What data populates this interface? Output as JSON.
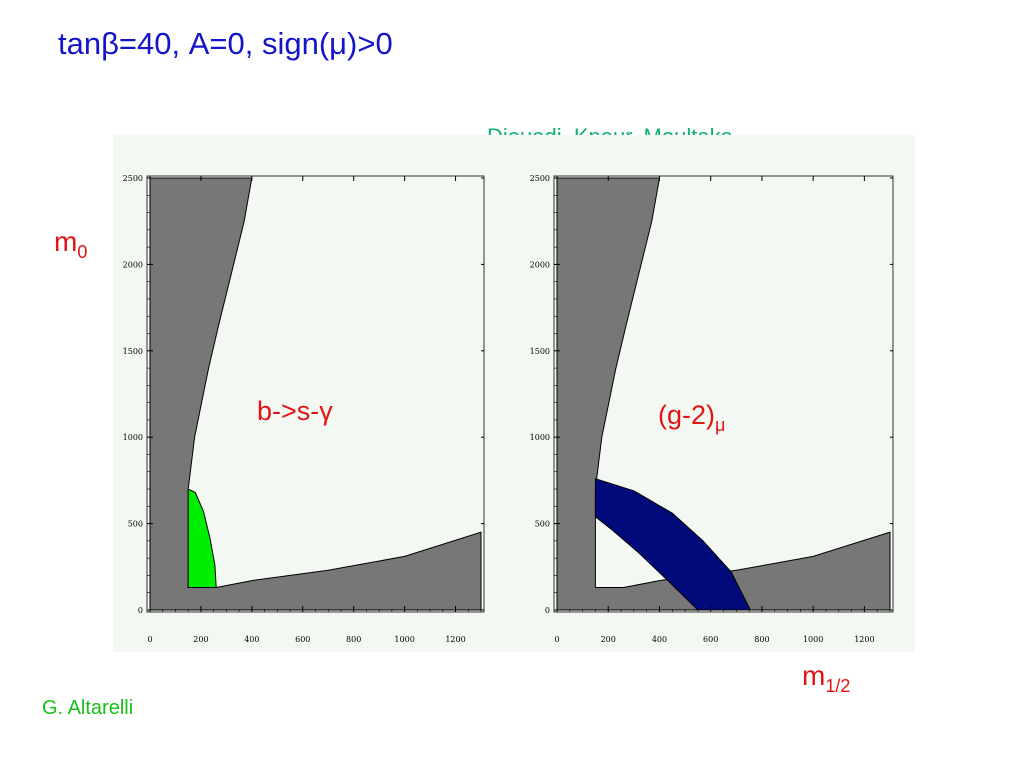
{
  "slide": {
    "title": "tanβ=40, A=0, sign(μ)>0",
    "credit_top": "Djouadi, Kneur, Moultaka",
    "credit_bottom": "G. Altarelli"
  },
  "colors": {
    "title": "#1414c8",
    "label_red": "#e01414",
    "excluded_gray": "#777777",
    "bsgamma_green": "#00ee00",
    "g2_blue": "#000a7a",
    "panel_bg": "#f3f8f2",
    "credit_green": "#10b070"
  },
  "chart_data": [
    {
      "type": "area",
      "xlabel_main": "m",
      "xlabel_sub": "1/2",
      "ylabel_main": "m",
      "ylabel_sub": "0",
      "annotation": "b->s-γ",
      "x_ticks": [
        "0",
        "200",
        "400",
        "600",
        "800",
        "1000",
        "1200"
      ],
      "y_ticks": [
        "0",
        "500",
        "1000",
        "1500",
        "2000",
        "2500"
      ],
      "xlim": [
        0,
        1300
      ],
      "ylim": [
        0,
        2500
      ],
      "regions": [
        {
          "name": "excluded-gray",
          "color": "#777777",
          "polygon": [
            [
              0,
              0
            ],
            [
              0,
              2500
            ],
            [
              400,
              2500
            ],
            [
              370,
              2250
            ],
            [
              320,
              1950
            ],
            [
              270,
              1650
            ],
            [
              230,
              1400
            ],
            [
              175,
              1000
            ],
            [
              150,
              700
            ],
            [
              150,
              130
            ],
            [
              260,
              130
            ],
            [
              400,
              170
            ],
            [
              700,
              230
            ],
            [
              1000,
              310
            ],
            [
              1300,
              450
            ],
            [
              1300,
              0
            ]
          ]
        },
        {
          "name": "bsgamma-green",
          "color": "#00ee00",
          "polygon": [
            [
              150,
              130
            ],
            [
              150,
              700
            ],
            [
              178,
              680
            ],
            [
              210,
              570
            ],
            [
              235,
              420
            ],
            [
              255,
              260
            ],
            [
              260,
              130
            ]
          ]
        }
      ]
    },
    {
      "type": "area",
      "annotation_main": "(g-2)",
      "annotation_sub": "μ",
      "x_ticks": [
        "0",
        "200",
        "400",
        "600",
        "800",
        "1000",
        "1200"
      ],
      "y_ticks": [
        "0",
        "500",
        "1000",
        "1500",
        "2000",
        "2500"
      ],
      "xlim": [
        0,
        1300
      ],
      "ylim": [
        0,
        2500
      ],
      "regions": [
        {
          "name": "excluded-gray",
          "color": "#777777",
          "polygon": [
            [
              0,
              0
            ],
            [
              0,
              2500
            ],
            [
              400,
              2500
            ],
            [
              370,
              2250
            ],
            [
              320,
              1950
            ],
            [
              270,
              1650
            ],
            [
              230,
              1400
            ],
            [
              175,
              1000
            ],
            [
              150,
              700
            ],
            [
              150,
              130
            ],
            [
              260,
              130
            ],
            [
              400,
              170
            ],
            [
              700,
              230
            ],
            [
              1000,
              310
            ],
            [
              1300,
              450
            ],
            [
              1300,
              0
            ]
          ]
        },
        {
          "name": "g2-blue-band",
          "color": "#000a7a",
          "polygon": [
            [
              150,
              760
            ],
            [
              300,
              690
            ],
            [
              450,
              560
            ],
            [
              570,
              400
            ],
            [
              680,
              220
            ],
            [
              755,
              0
            ],
            [
              550,
              0
            ],
            [
              440,
              160
            ],
            [
              320,
              330
            ],
            [
              210,
              470
            ],
            [
              150,
              540
            ]
          ]
        }
      ]
    }
  ]
}
